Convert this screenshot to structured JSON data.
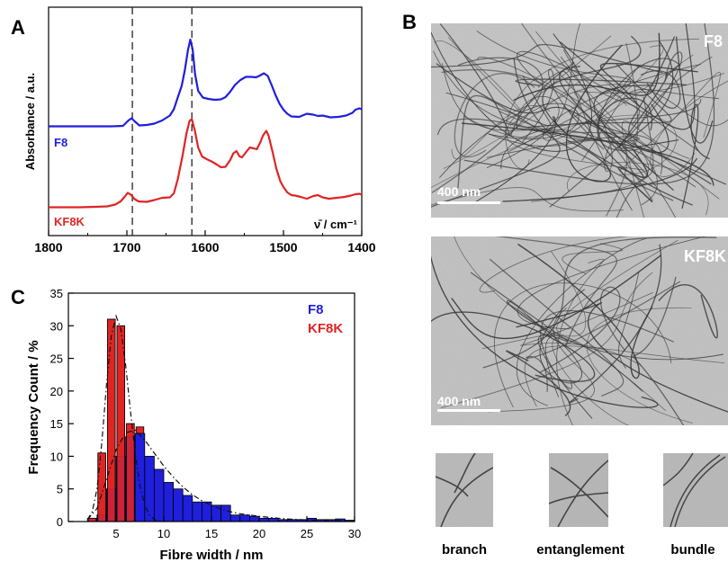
{
  "panel_labels": {
    "a": "A",
    "b": "B",
    "c": "C"
  },
  "chart_data": [
    {
      "id": "A",
      "type": "line",
      "title": "",
      "xlabel": "ν̄ / cm⁻¹",
      "ylabel": "Absorbance / a.u.",
      "xlim": [
        1800,
        1400
      ],
      "x_reversed": true,
      "xticks": [
        "1800",
        "1700",
        "1600",
        "1500",
        "1400"
      ],
      "reference_lines": [
        1693,
        1617
      ],
      "series": [
        {
          "name": "F8",
          "color": "#1f1fdc",
          "x": [
            1800,
            1780,
            1760,
            1740,
            1720,
            1705,
            1698,
            1694,
            1690,
            1684,
            1675,
            1665,
            1655,
            1645,
            1640,
            1635,
            1630,
            1626,
            1622,
            1619,
            1616,
            1613,
            1609,
            1603,
            1596,
            1588,
            1580,
            1574,
            1568,
            1562,
            1555,
            1548,
            1541,
            1535,
            1530,
            1525,
            1520,
            1515,
            1510,
            1505,
            1500,
            1495,
            1490,
            1480,
            1470,
            1462,
            1456,
            1450,
            1440,
            1430,
            1420,
            1412,
            1408,
            1403,
            1400
          ],
          "y": [
            0.5,
            0.5,
            0.5,
            0.5,
            0.5,
            0.6,
            1.8,
            2.3,
            1.6,
            0.7,
            0.8,
            1.1,
            1.8,
            2.9,
            4.3,
            6.9,
            9.5,
            13,
            17.5,
            19.8,
            17.6,
            12.2,
            8.4,
            6.9,
            6.6,
            6.4,
            6.5,
            7,
            8.2,
            9.7,
            10.8,
            11.5,
            11.5,
            11.4,
            11.8,
            12.3,
            11.7,
            9.6,
            7.4,
            5.5,
            4.2,
            3.3,
            2.7,
            2.6,
            3.3,
            3.1,
            2.8,
            2.9,
            2.5,
            2.6,
            2.9,
            3.5,
            4.2,
            4.5,
            4.3
          ]
        },
        {
          "name": "KF8K",
          "color": "#e02424",
          "x": [
            1800,
            1780,
            1760,
            1740,
            1725,
            1715,
            1708,
            1703,
            1699,
            1695,
            1690,
            1685,
            1675,
            1665,
            1655,
            1645,
            1640,
            1635,
            1629,
            1624,
            1620,
            1617,
            1613,
            1609,
            1604,
            1598,
            1592,
            1585,
            1580,
            1574,
            1568,
            1564,
            1560,
            1556,
            1553,
            1548,
            1543,
            1538,
            1534,
            1530,
            1526,
            1522,
            1519,
            1514,
            1509,
            1504,
            1500,
            1495,
            1490,
            1485,
            1478,
            1470,
            1462,
            1456,
            1450,
            1442,
            1432,
            1422,
            1414,
            1408,
            1403,
            1400
          ],
          "y": [
            0.3,
            0.3,
            0.3,
            0.4,
            0.5,
            0.9,
            1.6,
            2.6,
            3.5,
            3.1,
            2.1,
            1.6,
            1.5,
            1.9,
            2.4,
            2.5,
            3.4,
            6.5,
            11.7,
            16.6,
            19.5,
            19.9,
            17.2,
            13.6,
            11.6,
            11,
            10.5,
            9.8,
            9.2,
            9.3,
            10.8,
            12.3,
            12.8,
            11.6,
            11.4,
            12.5,
            13.6,
            13.4,
            13.2,
            14.6,
            16.3,
            17.3,
            16.2,
            12.7,
            8.8,
            6.1,
            4.8,
            3.6,
            3,
            2.9,
            2.6,
            2.2,
            2.8,
            3,
            2.5,
            2.2,
            2.4,
            2.6,
            2.9,
            3.2,
            3.3,
            3.1
          ]
        }
      ]
    },
    {
      "id": "C",
      "type": "bar",
      "title": "",
      "xlabel": "Fibre width / nm",
      "ylabel": "Frequency Count / %",
      "xlim": [
        0,
        30
      ],
      "ylim": [
        0,
        35
      ],
      "xticks": [
        "5",
        "10",
        "15",
        "20",
        "25",
        "30"
      ],
      "yticks": [
        "0",
        "5",
        "10",
        "15",
        "20",
        "25",
        "30",
        "35"
      ],
      "bin_width": 1,
      "series": [
        {
          "name": "KF8K",
          "color": "#e02424",
          "bins_start": [
            2,
            3,
            4,
            5,
            6,
            7,
            8,
            9
          ],
          "values": [
            0.5,
            10.5,
            31,
            30,
            15,
            14.5,
            2.5,
            0.5
          ],
          "fit_curve": {
            "x": [
              2,
              2.5,
              3,
              3.5,
              4,
              4.5,
              5,
              5.5,
              6,
              6.5,
              7,
              7.5,
              8,
              8.5,
              9,
              9.5,
              10
            ],
            "y": [
              0.3,
              1.5,
              5,
              12,
              21,
              28.5,
              31.5,
              29.5,
              24,
              17,
              10.5,
              5.5,
              2.5,
              1,
              0.3,
              0.1,
              0
            ]
          }
        },
        {
          "name": "F8",
          "color": "#1f1fdc",
          "bins_start": [
            2,
            3,
            4,
            5,
            6,
            7,
            8,
            9,
            10,
            11,
            12,
            13,
            14,
            15,
            16,
            17,
            18,
            19,
            20,
            21,
            22,
            23,
            24,
            25,
            26,
            27,
            28,
            29
          ],
          "values": [
            0.5,
            1,
            5,
            10,
            13,
            13.5,
            10,
            8,
            6,
            5,
            4,
            3,
            3,
            2.5,
            2.5,
            1,
            1,
            0.8,
            0.5,
            0.5,
            0.3,
            0.3,
            0.3,
            0.5,
            0.3,
            0.3,
            0.4,
            0.2
          ],
          "fit_curve": {
            "x": [
              2,
              3,
              4,
              5,
              6,
              7,
              8,
              9,
              10,
              11,
              12,
              13,
              14,
              15,
              16,
              17,
              18,
              20,
              22,
              24,
              26,
              28,
              30
            ],
            "y": [
              0.3,
              2,
              6.5,
              11,
              13.6,
              14,
              12.5,
              10.5,
              8.5,
              6.8,
              5.3,
              4.1,
              3.2,
              2.5,
              1.9,
              1.5,
              1.2,
              0.8,
              0.5,
              0.3,
              0.2,
              0.15,
              0.1
            ]
          }
        }
      ]
    }
  ],
  "micrographs": [
    {
      "label": "F8",
      "scale_bar": "400 nm"
    },
    {
      "label": "KF8K",
      "scale_bar": "400 nm"
    }
  ],
  "insets": [
    {
      "label": "branch"
    },
    {
      "label": "entanglement"
    },
    {
      "label": "bundle"
    }
  ]
}
